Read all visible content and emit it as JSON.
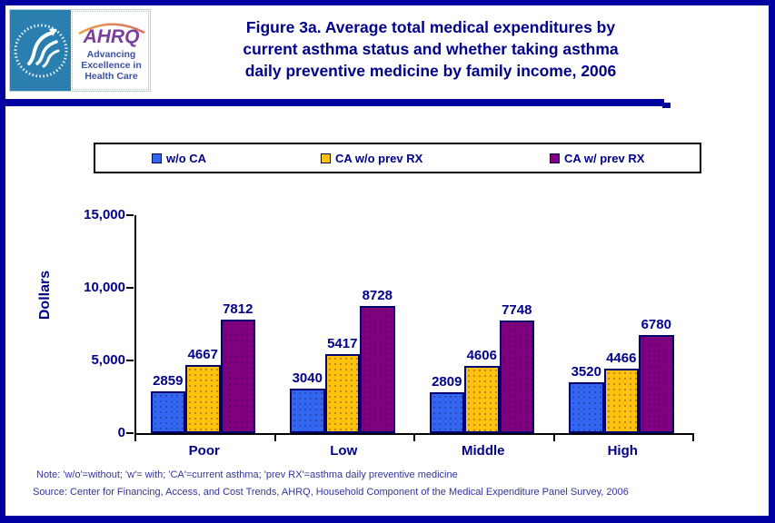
{
  "header": {
    "logo": {
      "org": "AHRQ",
      "tagline_lines": [
        "Advancing",
        "Excellence in",
        "Health Care"
      ]
    },
    "title_lines": [
      "Figure 3a. Average total medical expenditures by",
      "current asthma status and whether taking asthma",
      "daily preventive medicine by family income, 2006"
    ]
  },
  "legend": {
    "items": [
      {
        "label": "w/o CA",
        "color": "#3366F0"
      },
      {
        "label": "CA w/o prev RX",
        "color": "#FFC20E"
      },
      {
        "label": "CA w/ prev RX",
        "color": "#800080"
      }
    ]
  },
  "chart_data": {
    "type": "bar",
    "title": "Figure 3a. Average total medical expenditures by current asthma status and whether taking asthma daily preventive medicine by family income, 2006",
    "categories": [
      "Poor",
      "Low",
      "Middle",
      "High"
    ],
    "series": [
      {
        "name": "w/o CA",
        "color": "#3366F0",
        "values": [
          2859,
          3040,
          2809,
          3520
        ]
      },
      {
        "name": "CA w/o prev RX",
        "color": "#FFC20E",
        "values": [
          4667,
          5417,
          4606,
          4466
        ]
      },
      {
        "name": "CA w/ prev RX",
        "color": "#800080",
        "values": [
          7812,
          8728,
          7748,
          6780
        ]
      }
    ],
    "xlabel": "",
    "ylabel": "Dollars",
    "ylim": [
      0,
      15000
    ],
    "yticks": [
      0,
      5000,
      10000,
      15000
    ],
    "ytick_labels": [
      "0",
      "5,000",
      "10,000",
      "15,000"
    ],
    "grid": false,
    "legend_position": "top",
    "bar_value_labels": true
  },
  "footer": {
    "note": "Note: 'w/o'=without; 'w'= with; 'CA'=current asthma; 'prev RX'=asthma daily preventive medicine",
    "source": "Source: Center for Financing, Access, and Cost Trends, AHRQ, Household Component of the Medical Expenditure Panel Survey, 2006"
  },
  "colors": {
    "page_border": "#0000A0",
    "title_text": "#00008B",
    "axis": "#000000",
    "bar_border": "#000070",
    "footer_text": "#333399",
    "hhs_square": "#2A7FB0",
    "ahrq_purple": "#7A3F9D",
    "tagline_blue": "#3D52A1"
  }
}
